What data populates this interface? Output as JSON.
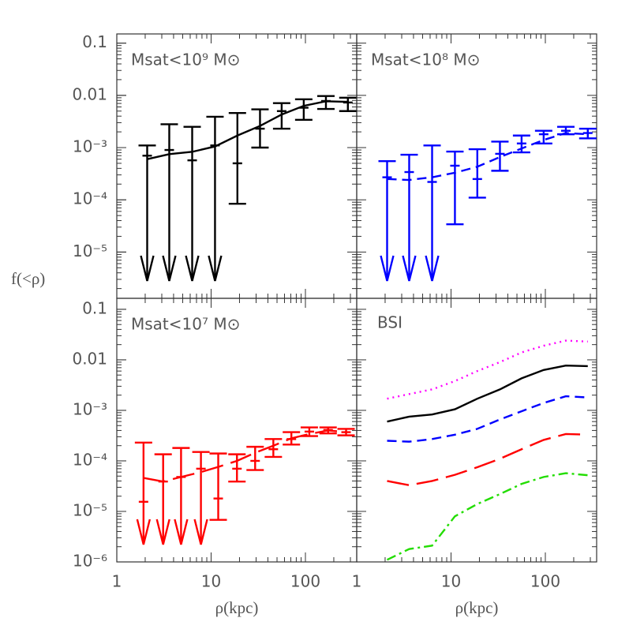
{
  "chart_data": [
    {
      "type": "line",
      "ylabel": "f(<ρ)",
      "xscale": "log",
      "yscale": "log",
      "xlim": [
        1,
        350
      ],
      "ylim": [
        1.3e-06,
        0.15
      ],
      "yticks": [
        0.1,
        0.01,
        {
          "value": 0.001,
          "label": "10⁻³"
        },
        {
          "value": 0.0001,
          "label": "10⁻⁴"
        },
        {
          "value": 1e-05,
          "label": "10⁻⁵"
        }
      ],
      "x": [
        2.1,
        3.6,
        6.3,
        11,
        19,
        33,
        56,
        96,
        165,
        282
      ],
      "series": [
        {
          "name": "Msat<10⁹ M⊙",
          "color": "#000000",
          "dash": "solid",
          "values": [
            0.0006,
            0.00075,
            0.00083,
            0.00105,
            0.0017,
            0.0026,
            0.0043,
            0.0063,
            0.0077,
            0.0075
          ],
          "points": [
            0.0007,
            0.0009,
            0.00057,
            0.0011,
            0.0005,
            0.0023,
            0.005,
            0.0058,
            0.0078,
            0.0073
          ],
          "upper": [
            0.0011,
            0.0028,
            0.0025,
            0.0039,
            0.0046,
            0.0054,
            0.0071,
            0.0084,
            0.0097,
            0.009
          ],
          "lower": [
            null,
            null,
            null,
            null,
            8.4e-05,
            0.001,
            0.0023,
            0.0034,
            0.0055,
            0.005
          ]
        }
      ]
    },
    {
      "type": "line",
      "xscale": "log",
      "yscale": "log",
      "xlim": [
        1,
        350
      ],
      "ylim": [
        1.3e-06,
        0.15
      ],
      "x": [
        2.1,
        3.6,
        6.3,
        11,
        19,
        33,
        56,
        96,
        165,
        282
      ],
      "series": [
        {
          "name": "Msat<10⁸ M⊙",
          "color": "#0000ff",
          "dash": "dashed",
          "values": [
            0.00025,
            0.00024,
            0.00027,
            0.00033,
            0.00043,
            0.00066,
            0.00096,
            0.0014,
            0.0019,
            0.0018
          ],
          "points": [
            0.00027,
            0.00034,
            0.00022,
            0.00045,
            0.00025,
            0.00076,
            0.0012,
            0.0018,
            0.0021,
            0.0019
          ],
          "upper": [
            0.00055,
            0.00073,
            0.0011,
            0.00084,
            0.00093,
            0.0013,
            0.0017,
            0.0021,
            0.0025,
            0.0023
          ],
          "lower": [
            null,
            null,
            null,
            3.4e-05,
            0.00011,
            0.00036,
            0.00081,
            0.0012,
            0.0018,
            0.0015
          ]
        }
      ]
    },
    {
      "type": "line",
      "xlabel": "ρ(kpc)",
      "xscale": "log",
      "yscale": "log",
      "xlim": [
        1,
        350
      ],
      "ylim": [
        1e-06,
        0.165
      ],
      "xticks": [
        1,
        10,
        100
      ],
      "yticks": [
        0.1,
        0.01,
        {
          "value": 0.001,
          "label": "10⁻³"
        },
        {
          "value": 0.0001,
          "label": "10⁻⁴"
        },
        {
          "value": 1e-05,
          "label": "10⁻⁵"
        },
        {
          "value": 1e-06,
          "label": "10⁻⁶"
        }
      ],
      "x": [
        1.92,
        3.1,
        4.8,
        7.8,
        11.9,
        18.8,
        29.3,
        45.7,
        71,
        110,
        174,
        270
      ],
      "series": [
        {
          "name": "Msat<10⁷ M⊙",
          "color": "#ff0000",
          "dash": "longdash",
          "values": [
            4.6e-05,
            3.9e-05,
            4.8e-05,
            6e-05,
            7.6e-05,
            0.0001,
            0.000145,
            0.0002,
            0.00028,
            0.00034,
            0.0004,
            0.00037
          ],
          "points": [
            1.55e-05,
            3.9e-05,
            4.8e-05,
            7e-05,
            1.8e-05,
            7e-05,
            0.0001,
            0.00017,
            0.00027,
            0.00038,
            0.00041,
            0.00037
          ],
          "upper": [
            0.00023,
            0.000135,
            0.00018,
            0.00015,
            0.00014,
            0.000135,
            0.00019,
            0.00027,
            0.00037,
            0.00046,
            0.00046,
            0.00043
          ],
          "lower": [
            null,
            null,
            null,
            null,
            6.8e-06,
            3.9e-05,
            6.6e-05,
            0.00012,
            0.00021,
            0.00031,
            0.00035,
            0.00032
          ]
        }
      ]
    },
    {
      "type": "line",
      "title": "BSI",
      "xlabel": "ρ(kpc)",
      "xscale": "log",
      "yscale": "log",
      "xlim": [
        1,
        350
      ],
      "ylim": [
        1e-06,
        0.165
      ],
      "xticks": [
        1,
        10,
        100
      ],
      "x": [
        2.1,
        3.6,
        6.3,
        11,
        19,
        33,
        56,
        96,
        165,
        282
      ],
      "series": [
        {
          "color": "#ff00ff",
          "dash": "dotted",
          "values": [
            0.0017,
            0.0021,
            0.0026,
            0.0038,
            0.006,
            0.009,
            0.014,
            0.019,
            0.024,
            0.023
          ]
        },
        {
          "color": "#000000",
          "dash": "solid",
          "values": [
            0.0006,
            0.00075,
            0.00083,
            0.00105,
            0.0017,
            0.0026,
            0.0043,
            0.0063,
            0.0077,
            0.0075
          ]
        },
        {
          "color": "#0000ff",
          "dash": "dashed",
          "values": [
            0.00025,
            0.00024,
            0.00027,
            0.00033,
            0.00043,
            0.00066,
            0.00096,
            0.0014,
            0.0019,
            0.0018
          ]
        },
        {
          "color": "#ff0000",
          "dash": "longdash",
          "values": [
            4e-05,
            3.3e-05,
            4e-05,
            5.3e-05,
            7.5e-05,
            0.00011,
            0.00017,
            0.00026,
            0.00034,
            0.00033
          ]
        },
        {
          "color": "#22dd00",
          "dash": "dashdot",
          "values": [
            1.1e-06,
            1.8e-06,
            2.1e-06,
            8e-06,
            1.4e-05,
            2.2e-05,
            3.5e-05,
            4.8e-05,
            5.7e-05,
            5.2e-05
          ]
        }
      ]
    }
  ]
}
